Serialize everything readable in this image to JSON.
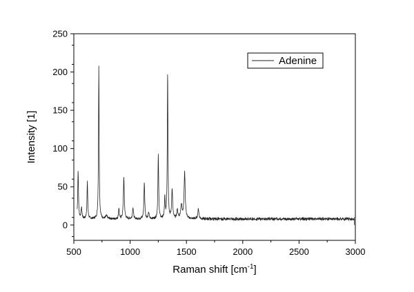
{
  "chart_data": {
    "type": "line",
    "title": "",
    "xlabel": "Raman shift [cm",
    "xlabel_sup": "-1",
    "xlabel_end": "]",
    "ylabel": "Intensity [1]",
    "xlim": [
      500,
      3000
    ],
    "ylim": [
      -20,
      250
    ],
    "xticks": [
      500,
      1000,
      1500,
      2000,
      2500,
      3000
    ],
    "yticks": [
      0,
      50,
      100,
      150,
      200,
      250
    ],
    "legend_position": "top-right",
    "grid": false,
    "series": [
      {
        "name": "Adenine",
        "color": "#222222",
        "baseline": 8,
        "noise": 1.5,
        "x_start": 530,
        "x_end": 2990,
        "peaks": [
          {
            "x": 538,
            "y": 71,
            "w": 4
          },
          {
            "x": 568,
            "y": 22,
            "w": 5
          },
          {
            "x": 620,
            "y": 56,
            "w": 4
          },
          {
            "x": 722,
            "y": 207,
            "w": 3.5
          },
          {
            "x": 790,
            "y": 12,
            "w": 8
          },
          {
            "x": 900,
            "y": 22,
            "w": 4
          },
          {
            "x": 944,
            "y": 61,
            "w": 5
          },
          {
            "x": 1025,
            "y": 23,
            "w": 5
          },
          {
            "x": 1126,
            "y": 55,
            "w": 4.5
          },
          {
            "x": 1165,
            "y": 16,
            "w": 5
          },
          {
            "x": 1250,
            "y": 91,
            "w": 4
          },
          {
            "x": 1308,
            "y": 35,
            "w": 4
          },
          {
            "x": 1333,
            "y": 200,
            "w": 3.5
          },
          {
            "x": 1373,
            "y": 47,
            "w": 5
          },
          {
            "x": 1419,
            "y": 20,
            "w": 5
          },
          {
            "x": 1455,
            "y": 25,
            "w": 8
          },
          {
            "x": 1484,
            "y": 68,
            "w": 6
          },
          {
            "x": 1606,
            "y": 21,
            "w": 6
          }
        ]
      }
    ]
  }
}
